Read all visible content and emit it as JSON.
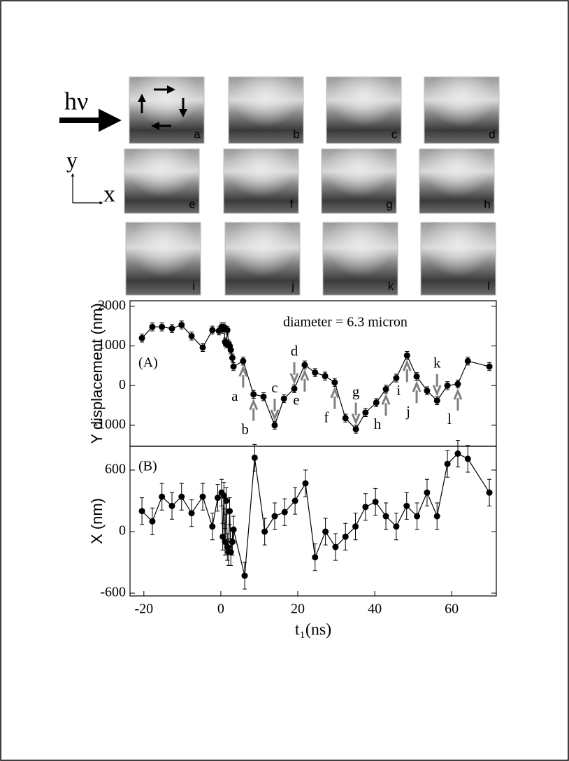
{
  "figure": {
    "incident": "hν",
    "axis_y": "y",
    "axis_x": "x"
  },
  "panels": {
    "labels": [
      "a",
      "b",
      "c",
      "d",
      "e",
      "f",
      "g",
      "h",
      "i",
      "j",
      "k",
      "l"
    ]
  },
  "chart_data": [
    {
      "type": "line",
      "panel_label": "(A)",
      "annotation": "diameter = 6.3 micron",
      "ylabel": "Y displacement (nm)",
      "xlim": [
        -23.6,
        71.6
      ],
      "ylim": [
        -1530,
        2140
      ],
      "yticks": [
        -1000,
        0,
        1000,
        2000
      ],
      "error": 100,
      "series": [
        {
          "color": "#000000",
          "x": [
            -20.5,
            -17.8,
            -15.3,
            -12.7,
            -10.2,
            -7.6,
            -4.7,
            -2.2,
            -0.5,
            0.2,
            0.5,
            0.8,
            1.1,
            1.4,
            1.7,
            2.0,
            2.3,
            2.6,
            3.0,
            3.3,
            5.8,
            8.5,
            11.1,
            14,
            16.4,
            19.1,
            21.8,
            24.5,
            27.1,
            29.6,
            32.4,
            35.1,
            37.6,
            40.4,
            42.9,
            45.6,
            48.4,
            50.9,
            53.6,
            56.2,
            58.9,
            61.6,
            64.2,
            69.8
          ],
          "values": [
            1200,
            1480,
            1480,
            1440,
            1530,
            1250,
            960,
            1400,
            1380,
            1480,
            1420,
            1480,
            1100,
            1050,
            1400,
            1050,
            1000,
            900,
            700,
            480,
            620,
            -220,
            -280,
            -1000,
            -330,
            -80,
            520,
            330,
            240,
            80,
            -820,
            -1100,
            -680,
            -430,
            -90,
            190,
            760,
            230,
            -130,
            -380,
            0,
            40,
            620,
            480
          ]
        }
      ],
      "arrow_color": "#808080",
      "arrows": [
        {
          "text": "a",
          "x": 5.8,
          "y": 620,
          "direction": "up"
        },
        {
          "text": "b",
          "x": 8.5,
          "y": -220,
          "direction": "up"
        },
        {
          "text": "c",
          "x": 14,
          "y": -1000,
          "direction": "down"
        },
        {
          "text": "d",
          "x": 19.1,
          "y": -80,
          "direction": "down"
        },
        {
          "text": "e",
          "x": 21.8,
          "y": 520,
          "direction": "up"
        },
        {
          "text": "f",
          "x": 29.6,
          "y": 80,
          "direction": "up"
        },
        {
          "text": "g",
          "x": 35.1,
          "y": -1100,
          "direction": "down"
        },
        {
          "text": "h",
          "x": 42.9,
          "y": -90,
          "direction": "up"
        },
        {
          "text": "i",
          "x": 48.4,
          "y": 760,
          "direction": "up"
        },
        {
          "text": "j",
          "x": 50.9,
          "y": 230,
          "direction": "up"
        },
        {
          "text": "k",
          "x": 56.2,
          "y": -380,
          "direction": "down"
        },
        {
          "text": "l",
          "x": 61.6,
          "y": 40,
          "direction": "up"
        }
      ]
    },
    {
      "type": "line",
      "panel_label": "(B)",
      "xlabel": "t₁(ns)",
      "ylabel": "X (nm)",
      "xlim": [
        -23.6,
        71.6
      ],
      "ylim": [
        -627,
        832
      ],
      "xticks": [
        -20,
        0,
        20,
        40,
        60
      ],
      "yticks": [
        -600,
        0,
        600
      ],
      "error": 130,
      "series": [
        {
          "color": "#000000",
          "x": [
            -20.5,
            -17.8,
            -15.3,
            -12.7,
            -10.2,
            -7.6,
            -4.7,
            -2.2,
            -0.8,
            0.2,
            0.5,
            0.8,
            1.1,
            1.4,
            1.7,
            2.0,
            2.3,
            2.6,
            3.0,
            3.3,
            6.2,
            8.8,
            11.4,
            14,
            16.6,
            19.3,
            22,
            24.5,
            27.2,
            29.8,
            32.4,
            35,
            37.6,
            40.2,
            42.9,
            45.6,
            48.3,
            51,
            53.6,
            56.2,
            58.9,
            61.6,
            64.2,
            69.8
          ],
          "values": [
            200,
            100,
            340,
            250,
            340,
            180,
            340,
            50,
            330,
            380,
            -50,
            350,
            -100,
            300,
            -150,
            -200,
            200,
            -200,
            -100,
            20,
            -430,
            720,
            0,
            150,
            190,
            300,
            470,
            -250,
            0,
            -150,
            -50,
            50,
            240,
            290,
            150,
            50,
            250,
            150,
            380,
            150,
            660,
            760,
            710,
            380
          ]
        }
      ]
    }
  ]
}
